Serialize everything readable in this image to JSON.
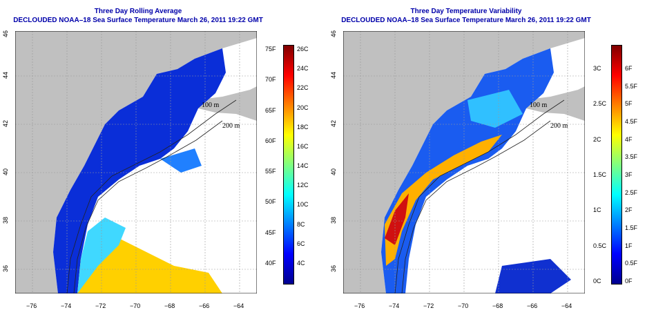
{
  "panels": [
    {
      "title": "Three Day Rolling Average",
      "subtitle": "DECLOUDED NOAA–18 Sea Surface Temperature March 26, 2011 19:22 GMT",
      "colorbar_left": [
        "26C",
        "24C",
        "22C",
        "20C",
        "18C",
        "16C",
        "14C",
        "12C",
        "10C",
        "8C",
        "6C",
        "4C"
      ],
      "colorbar_right": [
        "75F",
        "70F",
        "65F",
        "60F",
        "55F",
        "50F",
        "45F",
        "40F"
      ],
      "gradient": [
        "#00008f",
        "#0000ff",
        "#0080ff",
        "#00ffff",
        "#80ff80",
        "#ffff00",
        "#ff8000",
        "#ff0000",
        "#800000"
      ]
    },
    {
      "title": "Three Day Temperature Variability",
      "subtitle": "DECLOUDED NOAA–18 Sea Surface Temperature March 26, 2011 19:22 GMT",
      "colorbar_left": [
        "6F",
        "5.5F",
        "5F",
        "4.5F",
        "4F",
        "3.5F",
        "3F",
        "2.5F",
        "2F",
        "1.5F",
        "1F",
        "0.5F",
        "0F"
      ],
      "colorbar_right": [
        "3C",
        "2.5C",
        "2C",
        "1.5C",
        "1C",
        "0.5C",
        "0C"
      ],
      "gradient": [
        "#00008f",
        "#0000ff",
        "#0080ff",
        "#00ffff",
        "#80ff80",
        "#ffff00",
        "#ff8000",
        "#ff0000",
        "#800000"
      ]
    }
  ],
  "lon_ticks": [
    "−76",
    "−74",
    "−72",
    "−70",
    "−68",
    "−66",
    "−64"
  ],
  "lat_ticks": [
    "36",
    "38",
    "40",
    "42",
    "44",
    "46"
  ],
  "contour_labels": [
    "100 m",
    "200 m"
  ],
  "colors": {
    "land": "#c0c0c0",
    "ocean_blank": "#ffffff",
    "title": "#0000aa",
    "grid": "#999999"
  }
}
